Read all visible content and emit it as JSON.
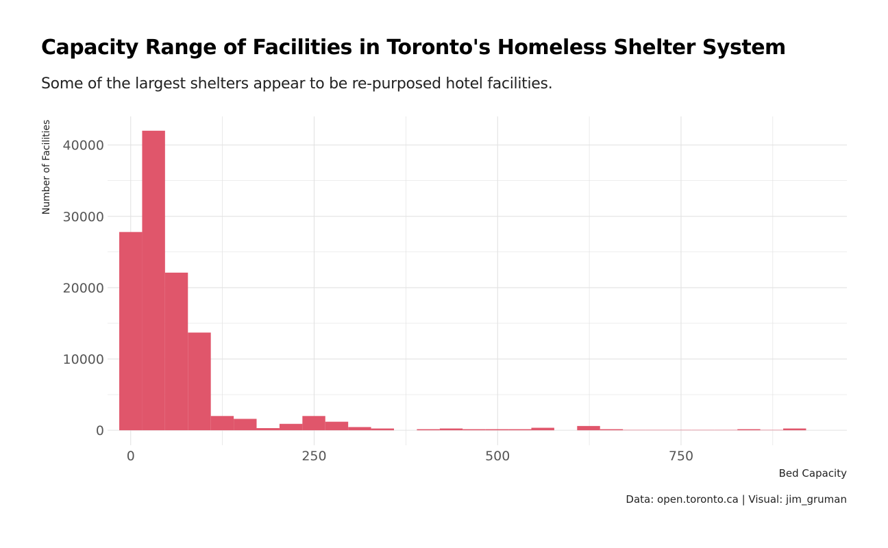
{
  "colors": {
    "bar": "#e0566b",
    "grid": "#e2e2e2",
    "text": "#222222",
    "tick_text": "#555555"
  },
  "chart_data": {
    "type": "bar",
    "title": "Capacity Range of Facilities in Toronto's Homeless Shelter System",
    "subtitle": "Some of the largest shelters appear to be re-purposed hotel facilities.",
    "xlabel": "Bed Capacity",
    "ylabel": "Number of Facilities",
    "caption": "Data: open.toronto.ca | Visual: jim_gruman",
    "xlim": [
      -31.5,
      976
    ],
    "ylim": [
      -2100,
      44000
    ],
    "x_ticks": [
      0,
      250,
      500,
      750
    ],
    "y_ticks": [
      0,
      10000,
      20000,
      30000,
      40000
    ],
    "grid": true,
    "bin_width": 31.2,
    "bins": [
      {
        "x0": -15.6,
        "x1": 15.6,
        "count": 27800
      },
      {
        "x0": 15.6,
        "x1": 46.8,
        "count": 42000
      },
      {
        "x0": 46.8,
        "x1": 78.0,
        "count": 22100
      },
      {
        "x0": 78.0,
        "x1": 109.2,
        "count": 13700
      },
      {
        "x0": 109.2,
        "x1": 140.4,
        "count": 2000
      },
      {
        "x0": 140.4,
        "x1": 171.6,
        "count": 1600
      },
      {
        "x0": 171.6,
        "x1": 202.8,
        "count": 300
      },
      {
        "x0": 202.8,
        "x1": 234.0,
        "count": 900
      },
      {
        "x0": 234.0,
        "x1": 265.2,
        "count": 2000
      },
      {
        "x0": 265.2,
        "x1": 296.4,
        "count": 1200
      },
      {
        "x0": 296.4,
        "x1": 327.6,
        "count": 450
      },
      {
        "x0": 327.6,
        "x1": 358.8,
        "count": 250
      },
      {
        "x0": 358.8,
        "x1": 390.0,
        "count": 0
      },
      {
        "x0": 390.0,
        "x1": 421.2,
        "count": 150
      },
      {
        "x0": 421.2,
        "x1": 452.4,
        "count": 250
      },
      {
        "x0": 452.4,
        "x1": 483.6,
        "count": 150
      },
      {
        "x0": 483.6,
        "x1": 514.8,
        "count": 150
      },
      {
        "x0": 514.8,
        "x1": 546.0,
        "count": 150
      },
      {
        "x0": 546.0,
        "x1": 577.2,
        "count": 350
      },
      {
        "x0": 577.2,
        "x1": 608.4,
        "count": 0
      },
      {
        "x0": 608.4,
        "x1": 639.6,
        "count": 600
      },
      {
        "x0": 639.6,
        "x1": 670.8,
        "count": 150
      },
      {
        "x0": 670.8,
        "x1": 702.0,
        "count": 50
      },
      {
        "x0": 702.0,
        "x1": 733.2,
        "count": 50
      },
      {
        "x0": 733.2,
        "x1": 764.4,
        "count": 50
      },
      {
        "x0": 764.4,
        "x1": 795.6,
        "count": 50
      },
      {
        "x0": 795.6,
        "x1": 826.8,
        "count": 50
      },
      {
        "x0": 826.8,
        "x1": 858.0,
        "count": 150
      },
      {
        "x0": 858.0,
        "x1": 889.2,
        "count": 50
      },
      {
        "x0": 889.2,
        "x1": 920.4,
        "count": 250
      }
    ]
  }
}
